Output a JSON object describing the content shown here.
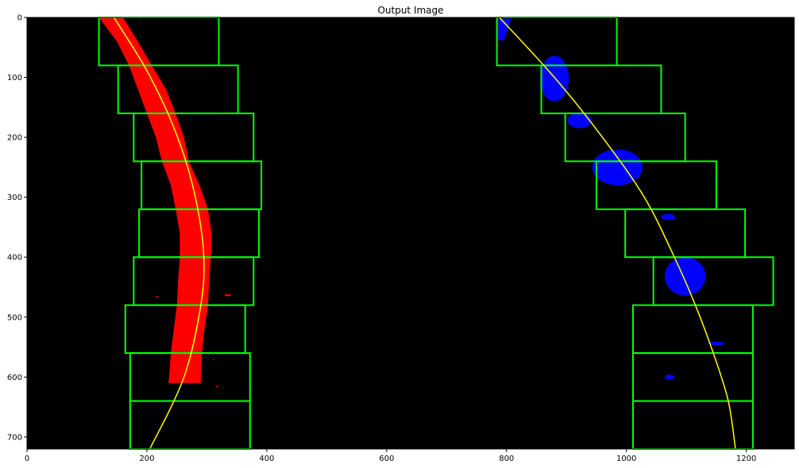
{
  "chart_data": {
    "type": "image",
    "title": "Output Image",
    "xlabel": "",
    "ylabel": "",
    "xlim": [
      0,
      1280
    ],
    "ylim": [
      720,
      0
    ],
    "xticks": [
      0,
      200,
      400,
      600,
      800,
      1000,
      1200
    ],
    "yticks": [
      0,
      100,
      200,
      300,
      400,
      500,
      600,
      700
    ],
    "background_color": "#000000",
    "window_color": "#00ff00",
    "fit_color": "#ffff00",
    "left_lane_color": "#ff0000",
    "right_lane_color": "#0000ff",
    "windows_left": [
      [
        120,
        0,
        320,
        80
      ],
      [
        152,
        80,
        352,
        160
      ],
      [
        178,
        160,
        378,
        240
      ],
      [
        191,
        240,
        391,
        320
      ],
      [
        187,
        320,
        387,
        400
      ],
      [
        178,
        400,
        378,
        480
      ],
      [
        164,
        480,
        364,
        560
      ],
      [
        172,
        560,
        372,
        640
      ],
      [
        172,
        640,
        372,
        720
      ]
    ],
    "windows_right": [
      [
        784,
        0,
        984,
        80
      ],
      [
        858,
        80,
        1058,
        160
      ],
      [
        898,
        160,
        1098,
        240
      ],
      [
        950,
        240,
        1150,
        320
      ],
      [
        998,
        320,
        1198,
        400
      ],
      [
        1045,
        400,
        1245,
        480
      ],
      [
        1011,
        480,
        1211,
        560
      ],
      [
        1011,
        560,
        1211,
        640
      ],
      [
        1011,
        640,
        1211,
        720
      ]
    ],
    "fit_left": {
      "x": [
        145,
        195,
        235,
        265,
        285,
        295,
        290,
        262,
        205
      ],
      "y": [
        0,
        80,
        160,
        240,
        320,
        400,
        480,
        600,
        720
      ]
    },
    "fit_right": {
      "x": [
        788,
        880,
        960,
        1030,
        1080,
        1115,
        1145,
        1170,
        1182
      ],
      "y": [
        0,
        100,
        200,
        300,
        400,
        480,
        560,
        640,
        720
      ]
    },
    "left_lane_band": {
      "y": [
        0,
        40,
        80,
        120,
        160,
        200,
        240,
        280,
        320,
        360,
        400,
        440,
        480,
        520,
        560,
        600,
        610
      ],
      "x_min": [
        120,
        150,
        170,
        185,
        200,
        215,
        225,
        240,
        248,
        255,
        255,
        252,
        250,
        245,
        240,
        237,
        236
      ],
      "x_max": [
        160,
        185,
        208,
        232,
        248,
        262,
        270,
        288,
        302,
        308,
        307,
        304,
        302,
        296,
        292,
        290,
        290
      ]
    },
    "right_lane_blobs": [
      {
        "shape": "quad",
        "points": [
          [
            786,
            2
          ],
          [
            808,
            2
          ],
          [
            796,
            38
          ],
          [
            786,
            38
          ]
        ]
      },
      {
        "shape": "ellipse",
        "cx": 880,
        "cy": 102,
        "rx": 24,
        "ry": 38
      },
      {
        "shape": "ellipse",
        "cx": 922,
        "cy": 172,
        "rx": 20,
        "ry": 13
      },
      {
        "shape": "ellipse",
        "cx": 985,
        "cy": 250,
        "rx": 42,
        "ry": 30
      },
      {
        "shape": "ellipse",
        "cx": 1070,
        "cy": 333,
        "rx": 12,
        "ry": 5
      },
      {
        "shape": "ellipse",
        "cx": 1098,
        "cy": 432,
        "rx": 34,
        "ry": 32
      },
      {
        "shape": "ellipse",
        "cx": 1150,
        "cy": 544,
        "rx": 14,
        "ry": 3
      },
      {
        "shape": "ellipse",
        "cx": 1072,
        "cy": 600,
        "rx": 8,
        "ry": 4
      }
    ],
    "left_lane_specks": [
      [
        215,
        465,
        4,
        2
      ],
      [
        330,
        462,
        10,
        3
      ],
      [
        315,
        615,
        3,
        2
      ],
      [
        310,
        570,
        2,
        2
      ]
    ]
  }
}
